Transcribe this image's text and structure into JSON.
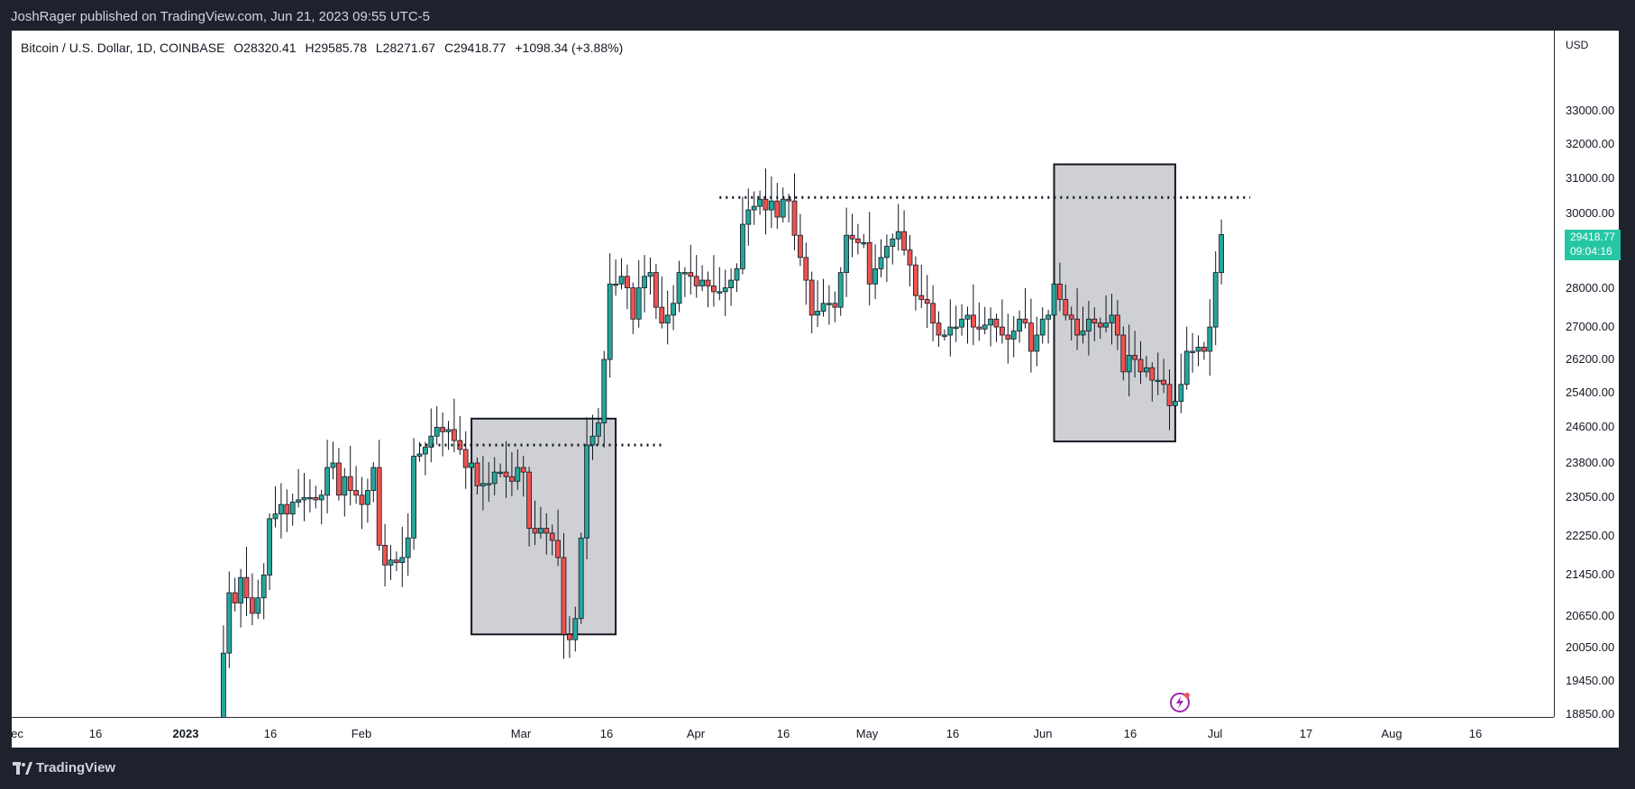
{
  "header": {
    "published": "JoshRager published on TradingView.com, Jun 21, 2023 09:55 UTC-5"
  },
  "legend": {
    "symbol": "Bitcoin / U.S. Dollar, 1D, COINBASE",
    "open": "O28320.41",
    "high": "H29585.78",
    "low": "L28271.67",
    "close": "C29418.77",
    "change": "+1098.34 (+3.88%)"
  },
  "price_axis": {
    "currency": "USD",
    "labels": [
      "33000.00",
      "32000.00",
      "31000.00",
      "30000.00",
      "28000.00",
      "27000.00",
      "26200.00",
      "25400.00",
      "24600.00",
      "23800.00",
      "23050.00",
      "22250.00",
      "21450.00",
      "20650.00",
      "20050.00",
      "19450.00",
      "18850.00"
    ],
    "last_price": "29418.77",
    "countdown": "09:04:16"
  },
  "time_axis": {
    "labels": [
      {
        "text": "ec",
        "bold": false
      },
      {
        "text": "16",
        "bold": false
      },
      {
        "text": "2023",
        "bold": true
      },
      {
        "text": "16",
        "bold": false
      },
      {
        "text": "Feb",
        "bold": false
      },
      {
        "text": "Mar",
        "bold": false
      },
      {
        "text": "16",
        "bold": false
      },
      {
        "text": "Apr",
        "bold": false
      },
      {
        "text": "16",
        "bold": false
      },
      {
        "text": "May",
        "bold": false
      },
      {
        "text": "16",
        "bold": false
      },
      {
        "text": "Jun",
        "bold": false
      },
      {
        "text": "16",
        "bold": false
      },
      {
        "text": "Jul",
        "bold": false
      },
      {
        "text": "17",
        "bold": false
      },
      {
        "text": "Aug",
        "bold": false
      },
      {
        "text": "16",
        "bold": false
      }
    ]
  },
  "colors": {
    "up": "#26a69a",
    "down": "#ef5350",
    "box": "#cfd0d4",
    "badge": "#26c6a4"
  },
  "chart_data": {
    "type": "candlestick",
    "scale": "log",
    "symbol": "BTCUSD",
    "interval": "1D",
    "dates_start": "2023-01-10",
    "closes": [
      18200,
      19950,
      21100,
      20900,
      21400,
      21000,
      20700,
      21000,
      21450,
      22600,
      22700,
      22900,
      22700,
      22950,
      23000,
      23050,
      23050,
      23000,
      23100,
      23700,
      23800,
      23100,
      23500,
      23200,
      23100,
      22900,
      23200,
      23700,
      22050,
      21650,
      21750,
      21700,
      21800,
      22200,
      23950,
      24000,
      24150,
      24400,
      24600,
      24500,
      24550,
      24300,
      24100,
      23700,
      23800,
      23300,
      23350,
      23350,
      23600,
      23600,
      23500,
      23400,
      23700,
      23600,
      22400,
      22300,
      22400,
      22300,
      22150,
      21800,
      20300,
      20200,
      20600,
      22200,
      24200,
      24400,
      24700,
      26200,
      28100,
      28100,
      28300,
      28000,
      27200,
      28000,
      28300,
      28400,
      27500,
      27100,
      27300,
      27600,
      28400,
      28400,
      28300,
      28050,
      28200,
      28050,
      27900,
      27900,
      28000,
      28200,
      28500,
      29700,
      30100,
      30200,
      30400,
      30100,
      30350,
      29900,
      30400,
      30350,
      29400,
      28800,
      28200,
      27300,
      27400,
      27600,
      27600,
      27500,
      28400,
      29400,
      29300,
      29200,
      29200,
      28100,
      28500,
      28800,
      29100,
      29300,
      29500,
      29000,
      28600,
      27800,
      27700,
      27600,
      27100,
      26800,
      26800,
      27000,
      27000,
      27200,
      27300,
      27000,
      26950,
      27050,
      27200,
      27000,
      26800,
      26700,
      26900,
      27200,
      27100,
      26400,
      26800,
      27200,
      27300,
      28100,
      27700,
      27300,
      27200,
      26800,
      26900,
      27200,
      27100,
      27000,
      27100,
      27300,
      26800,
      25900,
      26300,
      26200,
      25900,
      26000,
      25700,
      25700,
      25600,
      25100,
      25200,
      25600,
      26400,
      26400,
      26500,
      26400,
      27000,
      28400,
      29418.77
    ],
    "annotations": [
      {
        "type": "box",
        "from": "2023-02-23",
        "to": "2023-03-20",
        "price_low": 20300,
        "price_high": 24800
      },
      {
        "type": "hline",
        "price": 24200,
        "from": "2023-02-14",
        "to": "2023-03-28",
        "style": "dotted"
      },
      {
        "type": "hline",
        "price": 30450,
        "from": "2023-04-07",
        "to": "2023-07-08",
        "style": "dotted"
      },
      {
        "type": "box",
        "from": "2023-06-04",
        "to": "2023-06-25",
        "price_low": 24280,
        "price_high": 31400
      }
    ]
  }
}
